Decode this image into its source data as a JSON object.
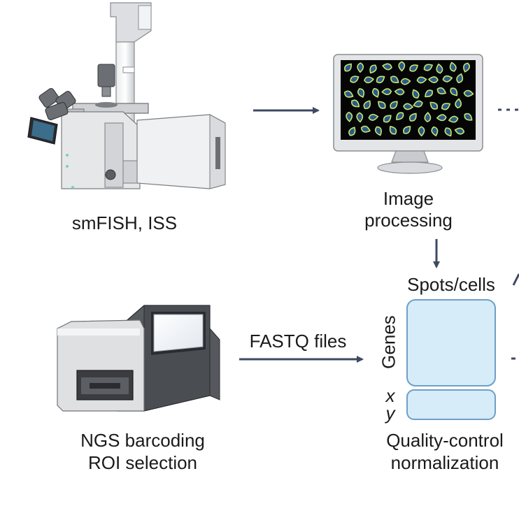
{
  "labels": {
    "smfish": "smFISH, ISS",
    "image_processing_line1": "Image",
    "image_processing_line2": "processing",
    "spots_cells": "Spots/cells",
    "genes": "Genes",
    "x": "x",
    "y": "y",
    "fastq": "FASTQ files",
    "ngs_line1": "NGS barcoding",
    "ngs_line2": "ROI selection",
    "qc_line1": "Quality-control",
    "qc_line2": "normalization"
  },
  "colors": {
    "arrow": "#3d4a63",
    "matrix_fill": "#d6ecf8",
    "matrix_stroke": "#6f9fc7",
    "screen_bg": "#050505",
    "cell_fill": "#2c5a8a",
    "cell_outline": "#c7e86b"
  },
  "icons": [
    "microscope-icon",
    "monitor-icon",
    "sequencer-icon"
  ]
}
